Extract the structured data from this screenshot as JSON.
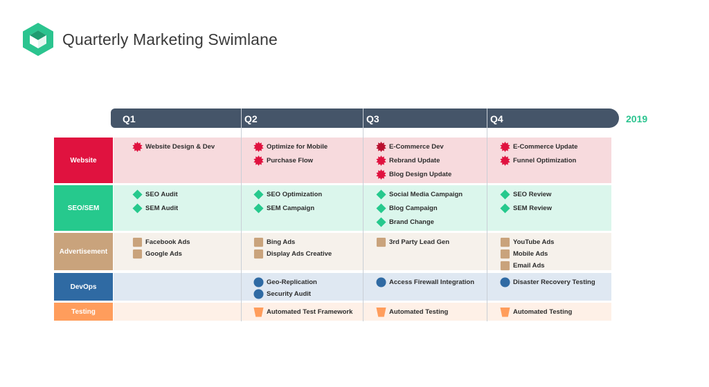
{
  "page": {
    "title": "Quarterly Marketing Swimlane"
  },
  "timeline": {
    "year": "2019",
    "quarters": [
      "Q1",
      "Q2",
      "Q3",
      "Q4"
    ]
  },
  "colors": {
    "header_bar": "#455569",
    "accent": "#2bc48f",
    "website": "#e0123f",
    "seo": "#26c98d",
    "advertisement": "#c9a37c",
    "devops": "#2f6aa3",
    "testing": "#ff9d5c"
  },
  "lanes": [
    {
      "label": "Website",
      "icon": "starburst-icon",
      "color": "#e0123f",
      "bg": "#f7dadd",
      "cells": [
        [
          "Website Design & Dev"
        ],
        [
          "Optimize for Mobile",
          "Purchase Flow"
        ],
        [
          "E-Commerce Dev",
          "Rebrand Update",
          "Blog Design Update"
        ],
        [
          "E-Commerce Update",
          "Funnel Optimization"
        ]
      ]
    },
    {
      "label": "SEO/SEM",
      "icon": "diamond-icon",
      "color": "#26c98d",
      "bg": "#dbf6ec",
      "cells": [
        [
          "SEO Audit",
          "SEM Audit"
        ],
        [
          "SEO Optimization",
          "SEM Campaign"
        ],
        [
          "Social Media Campaign",
          "Blog Campaign",
          "Brand Change"
        ],
        [
          "SEO Review",
          "SEM Review"
        ]
      ]
    },
    {
      "label": "Advertisement",
      "icon": "rounded-square-icon",
      "color": "#c9a37c",
      "bg": "#f6f1eb",
      "cells": [
        [
          "Facebook Ads",
          "Google Ads"
        ],
        [
          "Bing Ads",
          "Display Ads Creative"
        ],
        [
          "3rd Party Lead Gen"
        ],
        [
          "YouTube Ads",
          "Mobile Ads",
          "Email Ads"
        ]
      ]
    },
    {
      "label": "DevOps",
      "icon": "circle-icon",
      "color": "#2f6aa3",
      "bg": "#dfe8f2",
      "cells": [
        [],
        [
          "Geo-Replication",
          "Security Audit"
        ],
        [
          "Access Firewall Integration"
        ],
        [
          "Disaster Recovery Testing"
        ]
      ]
    },
    {
      "label": "Testing",
      "icon": "trapezoid-icon",
      "color": "#ff9d5c",
      "bg": "#fef0e7",
      "cells": [
        [],
        [
          "Automated Test Framework"
        ],
        [
          "Automated Testing"
        ],
        [
          "Automated Testing"
        ]
      ]
    }
  ]
}
